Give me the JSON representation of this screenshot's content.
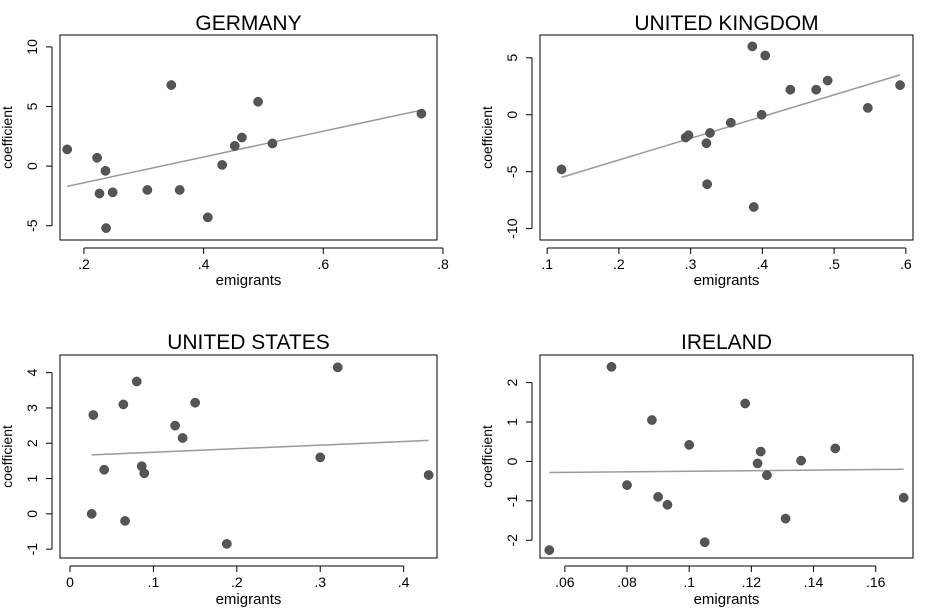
{
  "colors": {
    "marker": "#555555",
    "fit_line": "#9a9a9a",
    "frame": "#000000"
  },
  "chart_data": [
    {
      "type": "scatter",
      "title": "GERMANY",
      "xlabel": "emigrants",
      "ylabel": "coefficient",
      "xlim": [
        0.16,
        0.79
      ],
      "ylim": [
        -6.2,
        11.0
      ],
      "xticks": [
        0.2,
        0.4,
        0.6,
        0.8
      ],
      "xtick_labels": [
        ".2",
        ".4",
        ".6",
        ".8"
      ],
      "yticks": [
        -5,
        0,
        5,
        10
      ],
      "ytick_labels": [
        "-5",
        "0",
        "5",
        "10"
      ],
      "grid": false,
      "points": [
        {
          "x": 0.172,
          "y": 1.4
        },
        {
          "x": 0.222,
          "y": 0.7
        },
        {
          "x": 0.226,
          "y": -2.3
        },
        {
          "x": 0.236,
          "y": -0.4
        },
        {
          "x": 0.237,
          "y": -5.2
        },
        {
          "x": 0.248,
          "y": -2.2
        },
        {
          "x": 0.306,
          "y": -2.0
        },
        {
          "x": 0.346,
          "y": 6.8
        },
        {
          "x": 0.36,
          "y": -2.0
        },
        {
          "x": 0.407,
          "y": -4.3
        },
        {
          "x": 0.431,
          "y": 0.1
        },
        {
          "x": 0.452,
          "y": 1.7
        },
        {
          "x": 0.464,
          "y": 2.4
        },
        {
          "x": 0.491,
          "y": 5.4
        },
        {
          "x": 0.515,
          "y": 1.9
        },
        {
          "x": 0.764,
          "y": 4.4
        }
      ],
      "fit_line": [
        {
          "x": 0.172,
          "y": -1.7
        },
        {
          "x": 0.764,
          "y": 4.7
        }
      ]
    },
    {
      "type": "scatter",
      "title": "UNITED KINGDOM",
      "xlabel": "emigrants",
      "ylabel": "coefficient",
      "xlim": [
        0.09,
        0.61
      ],
      "ylim": [
        -11.0,
        7.0
      ],
      "xticks": [
        0.1,
        0.2,
        0.3,
        0.4,
        0.5,
        0.6
      ],
      "xtick_labels": [
        ".1",
        ".2",
        ".3",
        ".4",
        ".5",
        ".6"
      ],
      "yticks": [
        -10,
        -5,
        0,
        5
      ],
      "ytick_labels": [
        "-10",
        "-5",
        "0",
        "5"
      ],
      "grid": false,
      "points": [
        {
          "x": 0.12,
          "y": -4.8
        },
        {
          "x": 0.293,
          "y": -2.0
        },
        {
          "x": 0.297,
          "y": -1.8
        },
        {
          "x": 0.322,
          "y": -2.5
        },
        {
          "x": 0.323,
          "y": -6.1
        },
        {
          "x": 0.327,
          "y": -1.6
        },
        {
          "x": 0.356,
          "y": -0.7
        },
        {
          "x": 0.386,
          "y": 6.0
        },
        {
          "x": 0.388,
          "y": -8.1
        },
        {
          "x": 0.399,
          "y": 0.0
        },
        {
          "x": 0.404,
          "y": 5.2
        },
        {
          "x": 0.439,
          "y": 2.2
        },
        {
          "x": 0.475,
          "y": 2.2
        },
        {
          "x": 0.491,
          "y": 3.0
        },
        {
          "x": 0.547,
          "y": 0.6
        },
        {
          "x": 0.592,
          "y": 2.6
        }
      ],
      "fit_line": [
        {
          "x": 0.12,
          "y": -5.5
        },
        {
          "x": 0.592,
          "y": 3.5
        }
      ]
    },
    {
      "type": "scatter",
      "title": "UNITED STATES",
      "xlabel": "emigrants",
      "ylabel": "coefficient",
      "xlim": [
        -0.012,
        0.44
      ],
      "ylim": [
        -1.25,
        4.5
      ],
      "xticks": [
        0,
        0.1,
        0.2,
        0.3,
        0.4
      ],
      "xtick_labels": [
        "0",
        ".1",
        ".2",
        ".3",
        ".4"
      ],
      "yticks": [
        -1,
        0,
        1,
        2,
        3,
        4
      ],
      "ytick_labels": [
        "-1",
        "0",
        "1",
        "2",
        "3",
        "4"
      ],
      "grid": false,
      "points": [
        {
          "x": 0.026,
          "y": 0.0
        },
        {
          "x": 0.028,
          "y": 2.8
        },
        {
          "x": 0.041,
          "y": 1.25
        },
        {
          "x": 0.064,
          "y": 3.1
        },
        {
          "x": 0.066,
          "y": -0.2
        },
        {
          "x": 0.08,
          "y": 3.75
        },
        {
          "x": 0.086,
          "y": 1.35
        },
        {
          "x": 0.089,
          "y": 1.15
        },
        {
          "x": 0.126,
          "y": 2.5
        },
        {
          "x": 0.135,
          "y": 2.15
        },
        {
          "x": 0.15,
          "y": 3.15
        },
        {
          "x": 0.188,
          "y": -0.85
        },
        {
          "x": 0.3,
          "y": 1.6
        },
        {
          "x": 0.321,
          "y": 4.15
        },
        {
          "x": 0.43,
          "y": 1.1
        }
      ],
      "fit_line": [
        {
          "x": 0.026,
          "y": 1.67
        },
        {
          "x": 0.43,
          "y": 2.08
        }
      ]
    },
    {
      "type": "scatter",
      "title": "IRELAND",
      "xlabel": "emigrants",
      "ylabel": "coefficient",
      "xlim": [
        0.052,
        0.172
      ],
      "ylim": [
        -2.45,
        2.7
      ],
      "xticks": [
        0.06,
        0.08,
        0.1,
        0.12,
        0.14,
        0.16
      ],
      "xtick_labels": [
        ".06",
        ".08",
        ".1",
        ".12",
        ".14",
        ".16"
      ],
      "yticks": [
        -2,
        -1,
        0,
        1,
        2
      ],
      "ytick_labels": [
        "-2",
        "-1",
        "0",
        "1",
        "2"
      ],
      "grid": false,
      "points": [
        {
          "x": 0.055,
          "y": -2.25
        },
        {
          "x": 0.075,
          "y": 2.4
        },
        {
          "x": 0.08,
          "y": -0.6
        },
        {
          "x": 0.088,
          "y": 1.05
        },
        {
          "x": 0.09,
          "y": -0.9
        },
        {
          "x": 0.093,
          "y": -1.1
        },
        {
          "x": 0.1,
          "y": 0.42
        },
        {
          "x": 0.105,
          "y": -2.05
        },
        {
          "x": 0.118,
          "y": 1.47
        },
        {
          "x": 0.122,
          "y": -0.05
        },
        {
          "x": 0.123,
          "y": 0.25
        },
        {
          "x": 0.125,
          "y": -0.35
        },
        {
          "x": 0.131,
          "y": -1.45
        },
        {
          "x": 0.136,
          "y": 0.02
        },
        {
          "x": 0.147,
          "y": 0.33
        },
        {
          "x": 0.169,
          "y": -0.92
        }
      ],
      "fit_line": [
        {
          "x": 0.055,
          "y": -0.28
        },
        {
          "x": 0.169,
          "y": -0.2
        }
      ]
    }
  ]
}
